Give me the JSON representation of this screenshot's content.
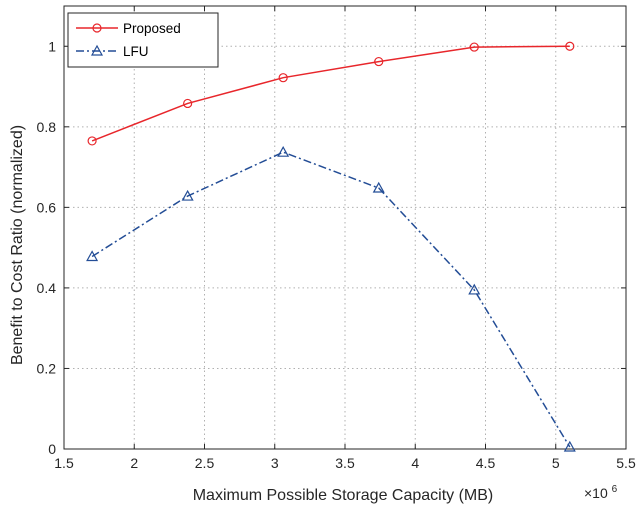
{
  "chart_data": {
    "type": "line",
    "xlabel": "Maximum Possible Storage Capacity (MB)",
    "ylabel": "Benefit to Cost Ratio (normalized)",
    "x_multiplier_base": "×10",
    "x_multiplier_exp": "6",
    "xlim": [
      1.5,
      5.5
    ],
    "ylim": [
      0,
      1.1
    ],
    "xticks": [
      "1.5",
      "2",
      "2.5",
      "3",
      "3.5",
      "4",
      "4.5",
      "5",
      "5.5"
    ],
    "yticks": [
      "0",
      "0.2",
      "0.4",
      "0.6",
      "0.8",
      "1"
    ],
    "grid": true,
    "legend_position": "top-left",
    "x": [
      1.7,
      2.38,
      3.06,
      3.74,
      4.42,
      5.1
    ],
    "series": [
      {
        "name": "Proposed",
        "values": [
          0.765,
          0.858,
          0.922,
          0.962,
          0.998,
          1.0
        ],
        "color": "#e8262b",
        "marker": "circle",
        "line": "solid"
      },
      {
        "name": "LFU",
        "values": [
          0.478,
          0.628,
          0.737,
          0.648,
          0.395,
          0.005
        ],
        "color": "#234d96",
        "marker": "triangle",
        "line": "dashdot"
      }
    ]
  }
}
